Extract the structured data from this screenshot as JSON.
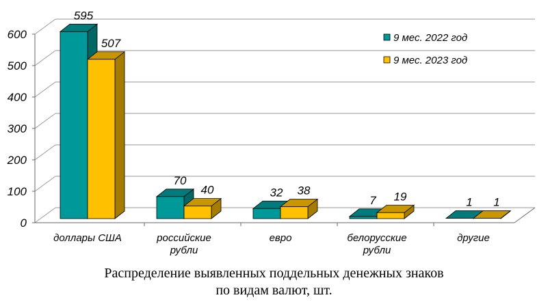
{
  "chart_data": {
    "type": "bar",
    "style": "3d-clustered",
    "categories": [
      "доллары США",
      "российские\nрубли",
      "евро",
      "белорусские\nрубли",
      "другие"
    ],
    "series": [
      {
        "name": "9 мес. 2022 год",
        "values": [
          595,
          70,
          32,
          7,
          1
        ],
        "color": "#009999",
        "top": "#007A7A",
        "side": "#006666"
      },
      {
        "name": "9 мес. 2023 год",
        "values": [
          507,
          40,
          38,
          19,
          1
        ],
        "color": "#FFC000",
        "top": "#C89600",
        "side": "#A67C00"
      }
    ],
    "ylim": [
      0,
      600
    ],
    "yticks": [
      0,
      100,
      200,
      300,
      400,
      500,
      600
    ],
    "grid": true,
    "legend": "top-right",
    "title": ""
  },
  "caption": {
    "line1": "Распределение выявленных поддельных денежных знаков",
    "line2": "по видам валют, шт."
  }
}
